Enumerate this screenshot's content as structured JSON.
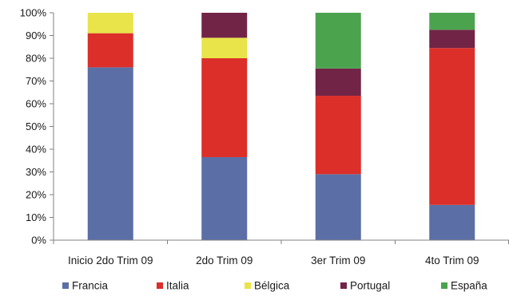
{
  "chart_data": {
    "type": "bar",
    "stacked": true,
    "percent_stacked": true,
    "categories": [
      "Inicio 2do Trim 09",
      "2do Trim 09",
      "3er Trim 09",
      "4to Trim 09"
    ],
    "series": [
      {
        "name": "Francia",
        "color": "#5b6fa6",
        "values": [
          76,
          36.5,
          29,
          15.5
        ]
      },
      {
        "name": "Italia",
        "color": "#dc2f2a",
        "values": [
          15,
          43.5,
          34.5,
          69
        ]
      },
      {
        "name": "Bélgica",
        "color": "#e8e44a",
        "values": [
          9,
          9,
          0,
          0
        ]
      },
      {
        "name": "Portugal",
        "color": "#722447",
        "values": [
          0,
          11,
          12,
          8
        ]
      },
      {
        "name": "España",
        "color": "#4ba34e",
        "values": [
          0,
          0,
          24.5,
          7.5
        ]
      }
    ],
    "ylim": [
      0,
      100
    ],
    "yticks": [
      "0%",
      "10%",
      "20%",
      "30%",
      "40%",
      "50%",
      "60%",
      "70%",
      "80%",
      "90%",
      "100%"
    ],
    "grid": false,
    "legend_position": "bottom"
  }
}
